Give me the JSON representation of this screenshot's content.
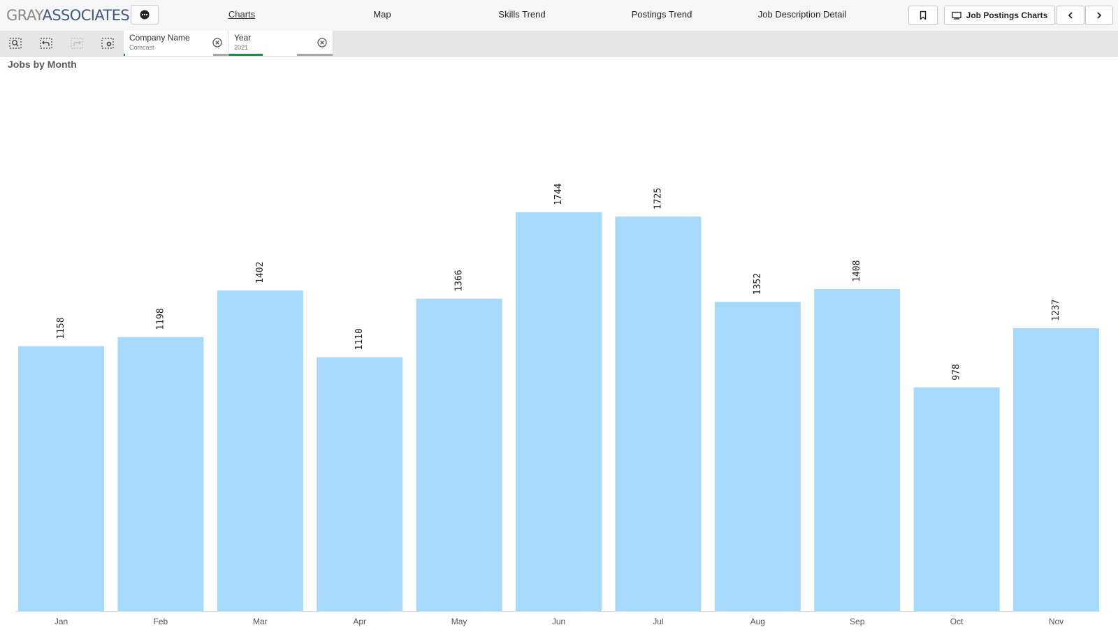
{
  "app": {
    "logo_gray": "GRAY",
    "logo_assoc": "ASSOCIATES",
    "menu_icon": "ellipsis-icon"
  },
  "nav": {
    "tabs": [
      {
        "label": "Charts",
        "active": true
      },
      {
        "label": "Map",
        "active": false
      },
      {
        "label": "Skills Trend",
        "active": false
      },
      {
        "label": "Postings Trend",
        "active": false
      },
      {
        "label": "Job Description Detail",
        "active": false
      }
    ]
  },
  "toolbar": {
    "sheet_label": "Job Postings Charts",
    "bookmark_icon": "bookmark-icon",
    "sheet_icon": "sheet-icon",
    "prev_icon": "chevron-left-icon",
    "next_icon": "chevron-right-icon"
  },
  "selections": {
    "tools": [
      "smart-search-icon",
      "step-back-icon",
      "step-forward-icon",
      "clear-selections-icon"
    ],
    "chips": [
      {
        "name": "Company Name",
        "value": "Comcast"
      },
      {
        "name": "Year",
        "value": "2021"
      }
    ]
  },
  "colors": {
    "bar": "#a6d9fb",
    "accent_green": "#009845",
    "brand_blue": "#3d5a80"
  },
  "chart_title": "Jobs by Month",
  "chart_data": {
    "type": "bar",
    "title": "Jobs by Month",
    "categories": [
      "Jan",
      "Feb",
      "Mar",
      "Apr",
      "May",
      "Jun",
      "Jul",
      "Aug",
      "Sep",
      "Oct",
      "Nov"
    ],
    "values": [
      1158,
      1198,
      1402,
      1110,
      1366,
      1744,
      1725,
      1352,
      1408,
      978,
      1237
    ],
    "xlabel": "",
    "ylabel": "",
    "ylim": [
      0,
      2000
    ],
    "grid": false,
    "data_labels": true
  }
}
